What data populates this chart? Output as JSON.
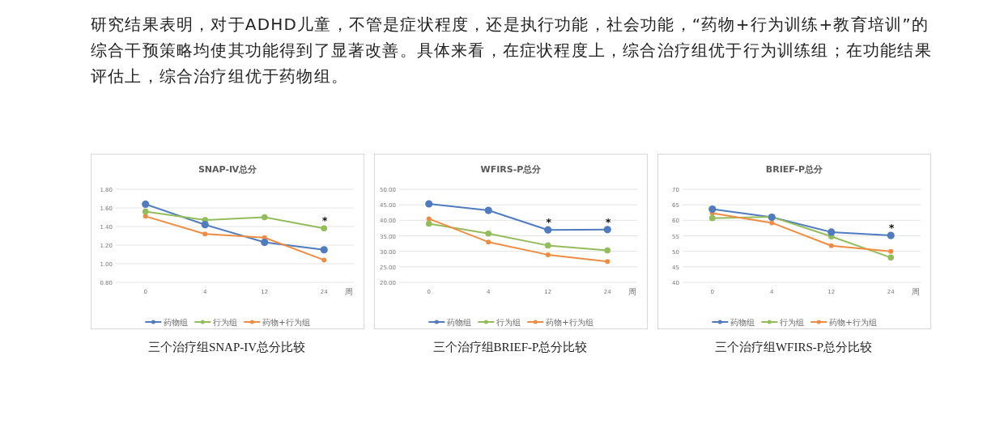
{
  "chart_data": [
    {
      "type": "other",
      "annotations": [
        "研究结果表明，对于ADHD儿童，不管是症状程度，还是执行功能，社会功能，“药物+行为训练+教育培训”的综合干预策略均使其功能得到了显著改善。具体来看，在症状程度上，综合治疗组优于行为训练组；在功能结果评估上，综合治疗组优于药物组。"
      ]
    },
    {
      "type": "line",
      "title": "SNAP-Ⅳ总分",
      "xlabel": "周",
      "categories": [
        "0",
        "4",
        "12",
        "24"
      ],
      "series": [
        {
          "name": "药物组",
          "color": "#4f7bbf",
          "values": [
            1.64,
            1.42,
            1.23,
            1.15
          ]
        },
        {
          "name": "行为组",
          "color": "#93bd5a",
          "values": [
            1.56,
            1.47,
            1.5,
            1.38
          ]
        },
        {
          "name": "药物+行为组",
          "color": "#f08c42",
          "values": [
            1.51,
            1.32,
            1.28,
            1.04
          ]
        }
      ],
      "ylim": [
        0.8,
        1.8
      ],
      "yticks": [
        {
          "value": 0.8,
          "label": "0.80"
        },
        {
          "value": 1.0,
          "label": "1.00"
        },
        {
          "value": 1.2,
          "label": "1.20"
        },
        {
          "value": 1.4,
          "label": "1.40"
        },
        {
          "value": 1.6,
          "label": "1.60"
        },
        {
          "value": 1.8,
          "label": "1.80"
        }
      ],
      "grid": "y",
      "legend": "bottom",
      "marker": "circle",
      "annotations": [
        {
          "text": "*",
          "x": "24",
          "y": 1.38
        },
        "三个治疗组SNAP-IV总分比较"
      ]
    },
    {
      "type": "line",
      "title": "WFIRS-P总分",
      "xlabel": "周",
      "categories": [
        "0",
        "4",
        "12",
        "24"
      ],
      "series": [
        {
          "name": "药物组",
          "color": "#4f7bbf",
          "values": [
            45.3,
            43.2,
            36.9,
            37.0
          ]
        },
        {
          "name": "行为组",
          "color": "#93bd5a",
          "values": [
            38.9,
            35.7,
            31.9,
            30.3
          ]
        },
        {
          "name": "药物+行为组",
          "color": "#f08c42",
          "values": [
            40.5,
            33.0,
            28.9,
            26.7
          ]
        }
      ],
      "ylim": [
        20,
        50
      ],
      "yticks": [
        {
          "value": 20,
          "label": "20.00"
        },
        {
          "value": 25,
          "label": "25.00"
        },
        {
          "value": 30,
          "label": "30.00"
        },
        {
          "value": 35,
          "label": "35.00"
        },
        {
          "value": 40,
          "label": "40.00"
        },
        {
          "value": 45,
          "label": "45.00"
        },
        {
          "value": 50,
          "label": "50.00"
        }
      ],
      "grid": "y",
      "legend": "bottom",
      "marker": "circle",
      "annotations": [
        {
          "text": "*",
          "x": "12",
          "y": 36.9
        },
        {
          "text": "*",
          "x": "24",
          "y": 37.0
        },
        "三个治疗组BRIEF-P总分比较"
      ]
    },
    {
      "type": "line",
      "title": "BRIEF-P总分",
      "xlabel": "周",
      "categories": [
        "0",
        "4",
        "12",
        "24"
      ],
      "series": [
        {
          "name": "药物组",
          "color": "#4f7bbf",
          "values": [
            63.6,
            61.0,
            56.2,
            55.1
          ]
        },
        {
          "name": "行为组",
          "color": "#93bd5a",
          "values": [
            60.7,
            61.1,
            54.8,
            48.0
          ]
        },
        {
          "name": "药物+行为组",
          "color": "#f08c42",
          "values": [
            62.3,
            59.2,
            51.8,
            50.0
          ]
        }
      ],
      "ylim": [
        40,
        70
      ],
      "yticks": [
        40,
        45,
        50,
        55,
        60,
        65,
        70
      ],
      "grid": "y",
      "legend": "bottom",
      "marker": "circle",
      "annotations": [
        {
          "text": "*",
          "x": "24",
          "y": 55.1
        },
        "三个治疗组WFIRS-P总分比较"
      ]
    }
  ]
}
